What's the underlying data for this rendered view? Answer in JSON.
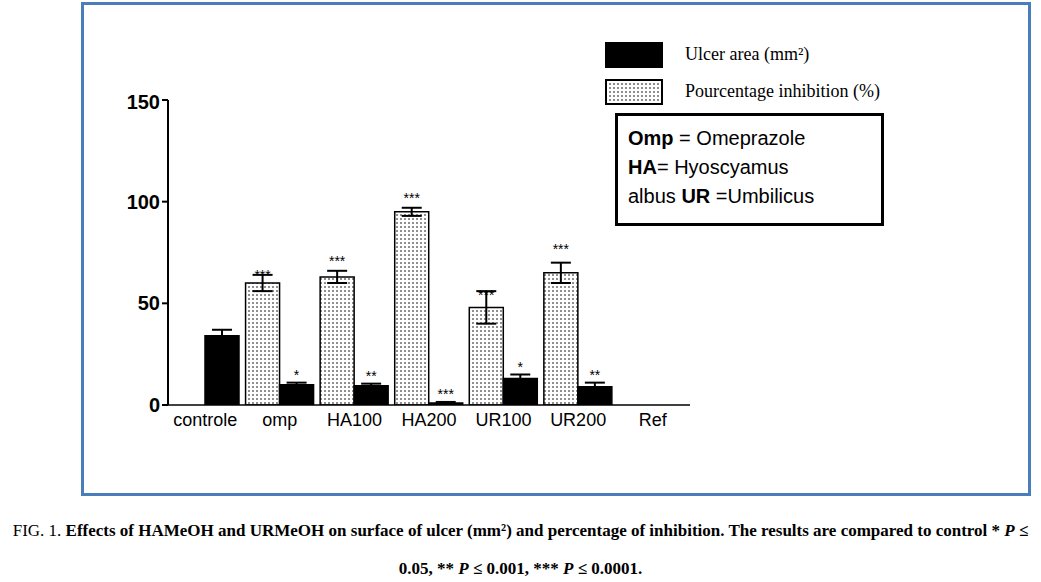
{
  "chart_data": {
    "type": "bar",
    "caption": "FIG. 1. Effects of HAMeOH and URMeOH on surface of ulcer (mm²) and percentage of inhibition. The results are compared to control * P ≤ 0.05, ** P ≤ 0.001, *** P ≤ 0.0001.",
    "categories": [
      "controle",
      "omp",
      "HA100",
      "HA200",
      "UR100",
      "UR200",
      "Ref"
    ],
    "series": [
      {
        "name": "Ulcer area (mm²)",
        "color": "#000000",
        "values": [
          34,
          10,
          9.5,
          1,
          13,
          9,
          null
        ],
        "error": [
          3,
          1,
          1,
          0.5,
          2,
          2,
          null
        ],
        "significance": [
          null,
          "*",
          "**",
          "***",
          "*",
          "**",
          null
        ]
      },
      {
        "name": "Pourcentage inhibition (%)",
        "color": "#000000",
        "line_style": "dotted",
        "values": [
          null,
          60,
          63,
          95,
          48,
          65,
          null
        ],
        "error": [
          null,
          4,
          3,
          2,
          8,
          5,
          null
        ],
        "significance": [
          null,
          "***",
          "***",
          "***",
          "***",
          "***",
          null
        ]
      }
    ],
    "ylim": [
      0,
      150
    ],
    "yticks": [
      0,
      50,
      100,
      150
    ],
    "grid": false,
    "legend": "upper right",
    "annotations": [
      "Omp = Omeprazole",
      "HA= Hyoscyamus",
      "albus UR =Umbilicus"
    ]
  }
}
